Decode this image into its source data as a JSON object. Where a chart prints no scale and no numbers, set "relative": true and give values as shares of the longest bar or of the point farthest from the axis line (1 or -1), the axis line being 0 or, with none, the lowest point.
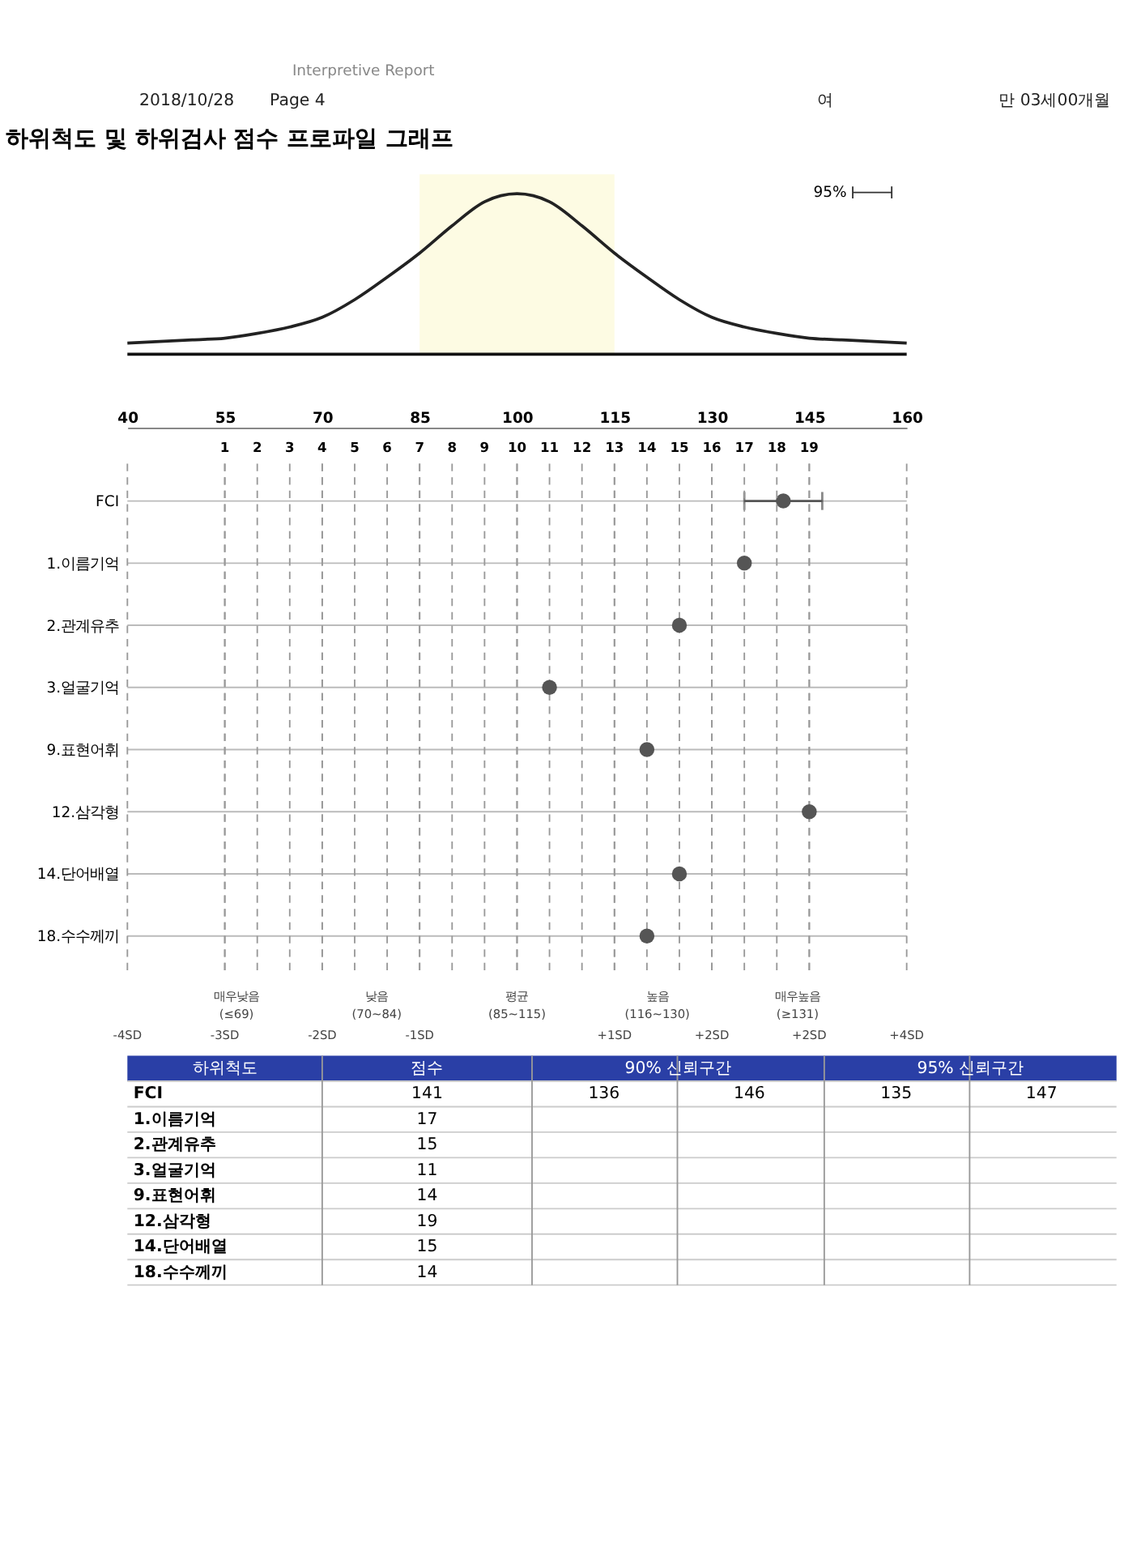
{
  "chart_data": [
    {
      "type": "line",
      "title": "하위척도 및 하위검사 점수 프로파일 그래프",
      "relative": true,
      "color": "#222222",
      "x": [
        40,
        45,
        50,
        55,
        60,
        65,
        70,
        75,
        80,
        85,
        90,
        95,
        100,
        105,
        110,
        115,
        120,
        125,
        130,
        135,
        140,
        145,
        150,
        155,
        160
      ],
      "values": [
        0.07,
        0.08,
        0.09,
        0.1,
        0.13,
        0.17,
        0.23,
        0.34,
        0.48,
        0.63,
        0.8,
        0.95,
        1,
        0.95,
        0.8,
        0.63,
        0.48,
        0.34,
        0.23,
        0.17,
        0.13,
        0.1,
        0.09,
        0.08,
        0.07
      ],
      "xlim": [
        40,
        160
      ],
      "tick_labels": false,
      "bands": [
        {
          "axis": "x",
          "from": 85,
          "to": 115,
          "color": "#fdfbe3"
        }
      ],
      "annotations": [
        "Interpretive Report",
        "2018/10/28",
        "Page 4",
        "여",
        "만 03세00개월",
        "95%"
      ]
    },
    {
      "type": "scatter",
      "orientation": "horizontal",
      "marker": "circle",
      "grid": true,
      "categories": [
        "FCI",
        "1.이름기억",
        "2.관계유추",
        "3.얼굴기억",
        "9.표현어휘",
        "12.삼각형",
        "14.단어배열",
        "18.수수께끼"
      ],
      "xlim": [
        40,
        160
      ],
      "xticks": [
        40,
        55,
        70,
        85,
        100,
        115,
        130,
        145,
        160
      ],
      "x2lim": [
        -2,
        22
      ],
      "x2ticks": [
        1,
        2,
        3,
        4,
        5,
        6,
        7,
        8,
        9,
        10,
        11,
        12,
        13,
        14,
        15,
        16,
        17,
        18,
        19
      ],
      "series": [
        {
          "color": "#555555",
          "values": [
            141,
            null,
            null,
            null,
            null,
            null,
            null,
            null
          ],
          "errors": [
            [
              135,
              147
            ],
            null,
            null,
            null,
            null,
            null,
            null,
            null
          ]
        },
        {
          "color": "#555555",
          "axis": "x2",
          "values": [
            null,
            17,
            15,
            11,
            14,
            19,
            15,
            14
          ]
        }
      ],
      "annotations": [
        "-4SD",
        "-3SD",
        "-2SD",
        "-1SD",
        "+1SD",
        "+2SD",
        "+2SD",
        "+4SD",
        "매우낮음 (≤69)",
        "낮음 (70~84)",
        "평균 (85~115)",
        "높음 (116~130)",
        "매우높음 (≥131)",
        "하위척도",
        "점수",
        "90% 신뢰구간",
        "95% 신뢰구간",
        "136",
        "146",
        "135",
        "147",
        "141",
        "17",
        "15",
        "11",
        "14",
        "19",
        "15",
        "14"
      ]
    }
  ]
}
